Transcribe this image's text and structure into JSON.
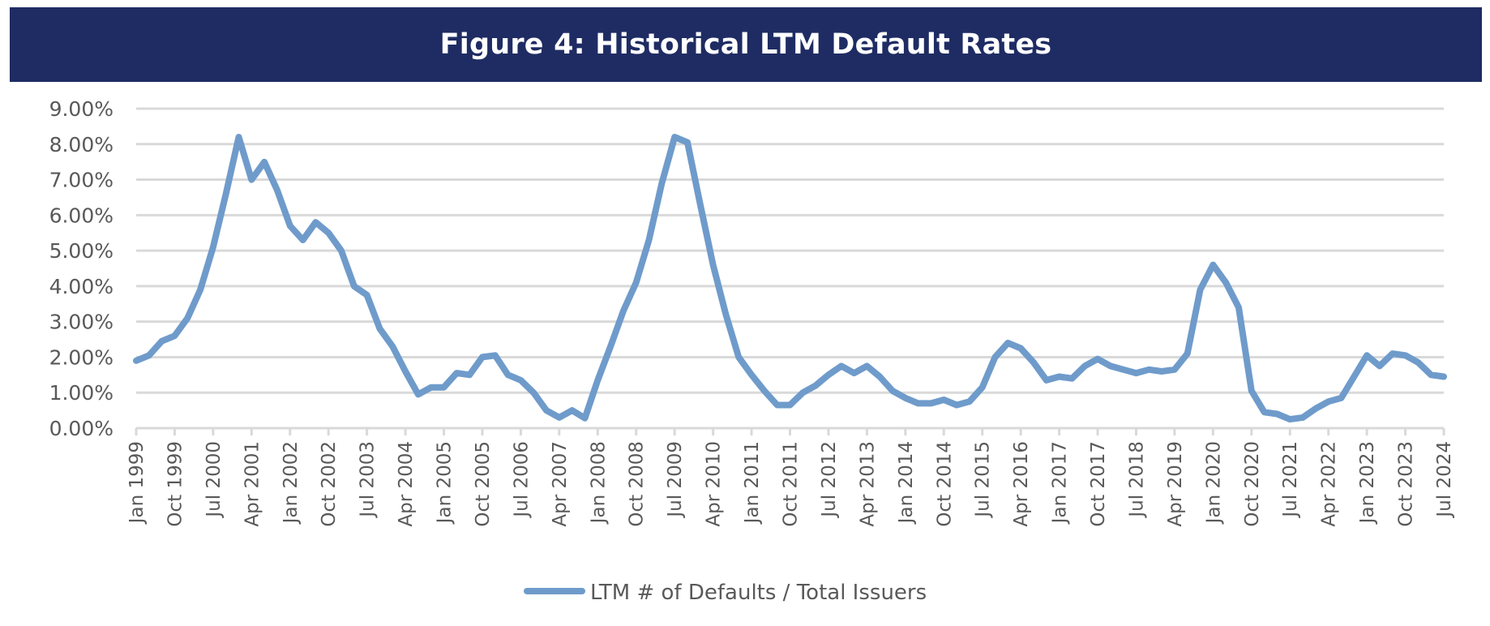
{
  "header": {
    "title": "Figure 4: Historical LTM Default Rates"
  },
  "colors": {
    "banner": "#1f2c63",
    "series": "#6f9bcb",
    "grid": "#d9d9d9",
    "text": "#595959"
  },
  "chart_data": {
    "type": "line",
    "title": "Figure 4: Historical LTM Default Rates",
    "xlabel": "",
    "ylabel": "",
    "ylim": [
      0,
      9
    ],
    "y_unit": "%",
    "y_ticks": [
      "0.00%",
      "1.00%",
      "2.00%",
      "3.00%",
      "4.00%",
      "5.00%",
      "6.00%",
      "7.00%",
      "8.00%",
      "9.00%"
    ],
    "x_start": "Jan 1999",
    "x_end": "Jul 2024",
    "x_frequency": "quarterly",
    "x_tick_labels": [
      "Jan 1999",
      "Oct 1999",
      "Jul 2000",
      "Apr 2001",
      "Jan 2002",
      "Oct 2002",
      "Jul 2003",
      "Apr 2004",
      "Jan 2005",
      "Oct 2005",
      "Jul 2006",
      "Apr 2007",
      "Jan 2008",
      "Oct 2008",
      "Jul 2009",
      "Apr 2010",
      "Jan 2011",
      "Oct 2011",
      "Jul 2012",
      "Apr 2013",
      "Jan 2014",
      "Oct 2014",
      "Jul 2015",
      "Apr 2016",
      "Jan 2017",
      "Oct 2017",
      "Jul 2018",
      "Apr 2019",
      "Jan 2020",
      "Oct 2020",
      "Jul 2021",
      "Apr 2022",
      "Jan 2023",
      "Oct 2023",
      "Jul 2024"
    ],
    "grid": true,
    "legend_position": "bottom",
    "series": [
      {
        "name": "LTM # of Defaults / Total Issuers",
        "x": [
          "Jan 1999",
          "Apr 1999",
          "Jul 1999",
          "Oct 1999",
          "Jan 2000",
          "Apr 2000",
          "Jul 2000",
          "Oct 2000",
          "Jan 2001",
          "Apr 2001",
          "Jul 2001",
          "Oct 2001",
          "Jan 2002",
          "Apr 2002",
          "Jul 2002",
          "Oct 2002",
          "Jan 2003",
          "Apr 2003",
          "Jul 2003",
          "Oct 2003",
          "Jan 2004",
          "Apr 2004",
          "Jul 2004",
          "Oct 2004",
          "Jan 2005",
          "Apr 2005",
          "Jul 2005",
          "Oct 2005",
          "Jan 2006",
          "Apr 2006",
          "Jul 2006",
          "Oct 2006",
          "Jan 2007",
          "Apr 2007",
          "Jul 2007",
          "Oct 2007",
          "Jan 2008",
          "Apr 2008",
          "Jul 2008",
          "Oct 2008",
          "Jan 2009",
          "Apr 2009",
          "Jul 2009",
          "Oct 2009",
          "Jan 2010",
          "Apr 2010",
          "Jul 2010",
          "Oct 2010",
          "Jan 2011",
          "Apr 2011",
          "Jul 2011",
          "Oct 2011",
          "Jan 2012",
          "Apr 2012",
          "Jul 2012",
          "Oct 2012",
          "Jan 2013",
          "Apr 2013",
          "Jul 2013",
          "Oct 2013",
          "Jan 2014",
          "Apr 2014",
          "Jul 2014",
          "Oct 2014",
          "Jan 2015",
          "Apr 2015",
          "Jul 2015",
          "Oct 2015",
          "Jan 2016",
          "Apr 2016",
          "Jul 2016",
          "Oct 2016",
          "Jan 2017",
          "Apr 2017",
          "Jul 2017",
          "Oct 2017",
          "Jan 2018",
          "Apr 2018",
          "Jul 2018",
          "Oct 2018",
          "Jan 2019",
          "Apr 2019",
          "Jul 2019",
          "Oct 2019",
          "Jan 2020",
          "Apr 2020",
          "Jul 2020",
          "Oct 2020",
          "Jan 2021",
          "Apr 2021",
          "Jul 2021",
          "Oct 2021",
          "Jan 2022",
          "Apr 2022",
          "Jul 2022",
          "Oct 2022",
          "Jan 2023",
          "Apr 2023",
          "Jul 2023",
          "Oct 2023",
          "Jan 2024",
          "Apr 2024",
          "Jul 2024"
        ],
        "values": [
          1.9,
          2.05,
          2.45,
          2.6,
          3.1,
          3.9,
          5.1,
          6.6,
          8.2,
          7.0,
          7.5,
          6.7,
          5.7,
          5.3,
          5.8,
          5.5,
          5.0,
          4.0,
          3.75,
          2.8,
          2.3,
          1.6,
          0.95,
          1.15,
          1.15,
          1.55,
          1.5,
          2.0,
          2.05,
          1.5,
          1.35,
          1.0,
          0.5,
          0.3,
          0.5,
          0.28,
          1.35,
          2.3,
          3.3,
          4.1,
          5.3,
          6.9,
          8.2,
          8.05,
          6.3,
          4.6,
          3.2,
          2.0,
          1.5,
          1.05,
          0.65,
          0.65,
          1.0,
          1.2,
          1.5,
          1.75,
          1.55,
          1.75,
          1.45,
          1.05,
          0.85,
          0.7,
          0.7,
          0.8,
          0.65,
          0.75,
          1.15,
          2.0,
          2.4,
          2.25,
          1.85,
          1.35,
          1.45,
          1.4,
          1.75,
          1.95,
          1.75,
          1.65,
          1.55,
          1.65,
          1.6,
          1.65,
          2.1,
          3.9,
          4.6,
          4.1,
          3.4,
          1.05,
          0.45,
          0.4,
          0.25,
          0.3,
          0.55,
          0.75,
          0.85,
          1.45,
          2.05,
          1.75,
          2.1,
          2.05,
          1.85,
          1.5,
          1.45
        ]
      }
    ]
  },
  "legend": {
    "label": "LTM # of Defaults / Total Issuers"
  }
}
